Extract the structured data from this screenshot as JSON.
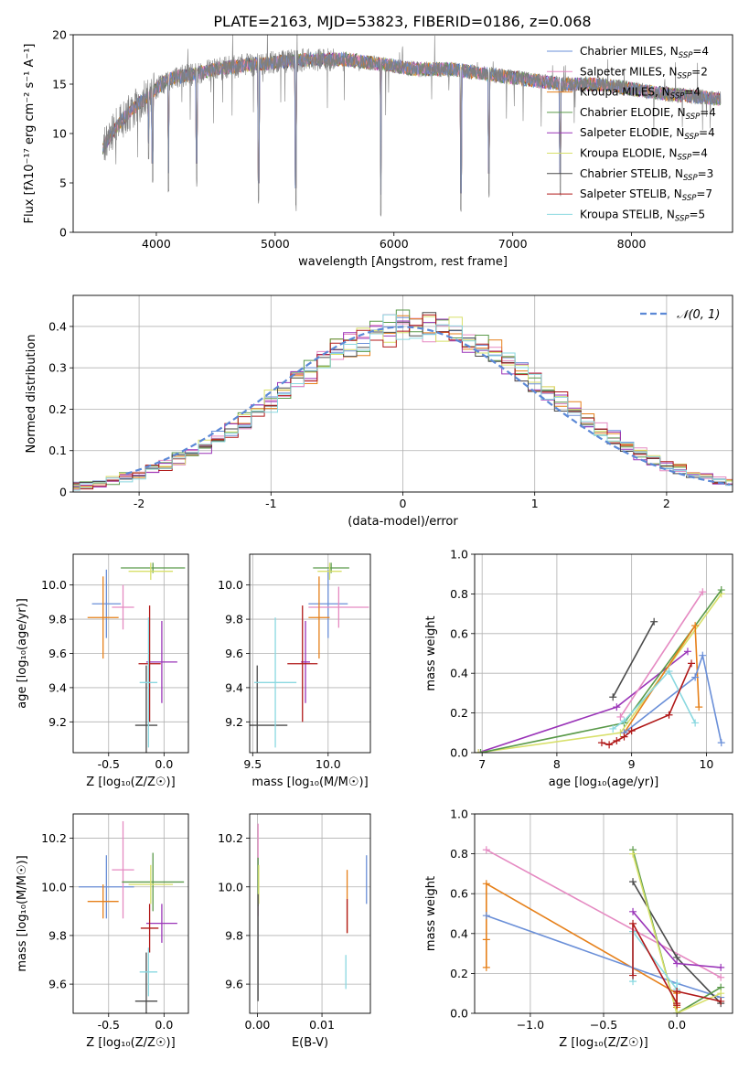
{
  "figure": {
    "title": "PLATE=2163, MJD=53823, FIBERID=0186, z=0.068"
  },
  "colors": {
    "chabrier_miles": "#6a8fd8",
    "salpeter_miles": "#e58ac2",
    "kroupa_miles": "#e6801a",
    "chabrier_elodie": "#5a9a4a",
    "salpeter_elodie": "#9a34b8",
    "kroupa_elodie": "#d8e06a",
    "chabrier_stelib": "#4a4a4a",
    "salpeter_stelib": "#b01818",
    "kroupa_stelib": "#8ad8e0",
    "data_spectrum": "#7f7f7f",
    "gaussian": "#5b88d6",
    "grid": "#b0b0b0"
  },
  "chart_data": [
    {
      "id": "spectrum",
      "type": "line",
      "title": "PLATE=2163, MJD=53823, FIBERID=0186, z=0.068",
      "xlabel": "wavelength [Angstrom, rest frame]",
      "ylabel": "Flux [fλ10⁻¹⁷ erg cm⁻² s⁻¹ A⁻¹]",
      "xlim": [
        3300,
        8850
      ],
      "ylim": [
        0,
        20
      ],
      "xticks": [
        4000,
        5000,
        6000,
        7000,
        8000
      ],
      "yticks": [
        0,
        5,
        10,
        15,
        20
      ],
      "grid": false,
      "legend_position": "top-right",
      "legend": [
        {
          "label": "Chabrier MILES, N",
          "sub": "SSP",
          "suffix": "=4",
          "color_key": "chabrier_miles"
        },
        {
          "label": "Salpeter MILES, N",
          "sub": "SSP",
          "suffix": "=2",
          "color_key": "salpeter_miles"
        },
        {
          "label": "Kroupa MILES, N",
          "sub": "SSP",
          "suffix": "=4",
          "color_key": "kroupa_miles"
        },
        {
          "label": "Chabrier ELODIE, N",
          "sub": "SSP",
          "suffix": "=4",
          "color_key": "chabrier_elodie"
        },
        {
          "label": "Salpeter ELODIE, N",
          "sub": "SSP",
          "suffix": "=4",
          "color_key": "salpeter_elodie"
        },
        {
          "label": "Kroupa ELODIE, N",
          "sub": "SSP",
          "suffix": "=4",
          "color_key": "kroupa_elodie"
        },
        {
          "label": "Chabrier STELIB, N",
          "sub": "SSP",
          "suffix": "=3",
          "color_key": "chabrier_stelib"
        },
        {
          "label": "Salpeter STELIB, N",
          "sub": "SSP",
          "suffix": "=7",
          "color_key": "salpeter_stelib"
        },
        {
          "label": "Kroupa STELIB, N",
          "sub": "SSP",
          "suffix": "=5",
          "color_key": "kroupa_stelib"
        }
      ],
      "continuum": [
        [
          3550,
          8.5
        ],
        [
          3650,
          10.5
        ],
        [
          3800,
          12.5
        ],
        [
          3950,
          14.0
        ],
        [
          4100,
          15.5
        ],
        [
          4300,
          16.0
        ],
        [
          4500,
          16.5
        ],
        [
          4800,
          17.0
        ],
        [
          5000,
          17.2
        ],
        [
          5300,
          17.5
        ],
        [
          5600,
          17.5
        ],
        [
          5900,
          17.0
        ],
        [
          6200,
          16.5
        ],
        [
          6500,
          16.5
        ],
        [
          6800,
          16.0
        ],
        [
          7100,
          15.5
        ],
        [
          7400,
          15.0
        ],
        [
          7700,
          15.0
        ],
        [
          8000,
          14.5
        ],
        [
          8300,
          14.0
        ],
        [
          8750,
          13.5
        ]
      ],
      "absorption_lines": [
        [
          3934,
          7.0
        ],
        [
          3969,
          5.0
        ],
        [
          4102,
          4.0
        ],
        [
          4340,
          5.0
        ],
        [
          4861,
          3.0
        ],
        [
          5175,
          2.5
        ],
        [
          5890,
          1.8
        ],
        [
          6563,
          2.0
        ],
        [
          6800,
          4.0
        ],
        [
          7400,
          4.0
        ]
      ]
    },
    {
      "id": "residuals",
      "type": "area",
      "xlabel": "(data-model)/error",
      "ylabel": "Normed distribution",
      "xlim": [
        -2.5,
        2.5
      ],
      "ylim": [
        0,
        0.475
      ],
      "xticks": [
        -2,
        -1,
        0,
        1,
        2
      ],
      "yticks": [
        0.0,
        0.1,
        0.2,
        0.3,
        0.4
      ],
      "grid": true,
      "legend_position": "top-right",
      "legend": [
        {
          "label": "𝒩(0, 1)",
          "color_key": "gaussian",
          "style": "dashed"
        }
      ],
      "bin_width": 0.1,
      "note_values": "histogram bins follow the standard normal density"
    },
    {
      "id": "age_vs_Z",
      "type": "scatter",
      "xlabel": "Z [log₁₀(Z/Z☉)]",
      "ylabel": "age  [log₁₀(age/yr)]",
      "xlim": [
        -0.82,
        0.22
      ],
      "ylim": [
        9.02,
        10.18
      ],
      "xticks": [
        -0.5,
        0.0
      ],
      "yticks": [
        9.2,
        9.4,
        9.6,
        9.8,
        10.0
      ],
      "grid": true,
      "points": [
        {
          "k": "chabrier_miles",
          "x": -0.52,
          "y": 9.89,
          "xerr": 0.13,
          "yerr": 0.2
        },
        {
          "k": "salpeter_miles",
          "x": -0.37,
          "y": 9.87,
          "xerr": 0.1,
          "yerr": 0.13
        },
        {
          "k": "kroupa_miles",
          "x": -0.55,
          "y": 9.81,
          "xerr": 0.14,
          "yerr": 0.24
        },
        {
          "k": "chabrier_elodie",
          "x": -0.1,
          "y": 10.1,
          "xerr": 0.29,
          "yerr": 0.03
        },
        {
          "k": "salpeter_elodie",
          "x": -0.02,
          "y": 9.55,
          "xerr": 0.14,
          "yerr": 0.24
        },
        {
          "k": "kroupa_elodie",
          "x": -0.12,
          "y": 10.08,
          "xerr": 0.2,
          "yerr": 0.05
        },
        {
          "k": "chabrier_stelib",
          "x": -0.16,
          "y": 9.18,
          "xerr": 0.1,
          "yerr": 0.35
        },
        {
          "k": "salpeter_stelib",
          "x": -0.13,
          "y": 9.54,
          "xerr": 0.1,
          "yerr": 0.34
        },
        {
          "k": "kroupa_stelib",
          "x": -0.14,
          "y": 9.43,
          "xerr": 0.08,
          "yerr": 0.38
        }
      ]
    },
    {
      "id": "age_vs_mass",
      "type": "scatter",
      "xlabel": "mass [log₁₀(M/M☉)]",
      "ylabel": "",
      "xlim": [
        9.48,
        10.28
      ],
      "ylim": [
        9.02,
        10.18
      ],
      "xticks": [
        9.5,
        10.0
      ],
      "yticks": [
        9.2,
        9.4,
        9.6,
        9.8,
        10.0
      ],
      "grid": true,
      "points": [
        {
          "k": "chabrier_miles",
          "x": 10.0,
          "y": 9.89,
          "xerr": 0.13,
          "yerr": 0.2
        },
        {
          "k": "salpeter_miles",
          "x": 10.07,
          "y": 9.87,
          "xerr": 0.2,
          "yerr": 0.12
        },
        {
          "k": "kroupa_miles",
          "x": 9.94,
          "y": 9.81,
          "xerr": 0.07,
          "yerr": 0.24
        },
        {
          "k": "chabrier_elodie",
          "x": 10.02,
          "y": 10.1,
          "xerr": 0.12,
          "yerr": 0.03
        },
        {
          "k": "salpeter_elodie",
          "x": 9.85,
          "y": 9.55,
          "xerr": 0.03,
          "yerr": 0.24
        },
        {
          "k": "kroupa_elodie",
          "x": 10.01,
          "y": 10.08,
          "xerr": 0.08,
          "yerr": 0.05
        },
        {
          "k": "chabrier_stelib",
          "x": 9.53,
          "y": 9.18,
          "xerr": 0.2,
          "yerr": 0.35
        },
        {
          "k": "salpeter_stelib",
          "x": 9.83,
          "y": 9.54,
          "xerr": 0.1,
          "yerr": 0.34
        },
        {
          "k": "kroupa_stelib",
          "x": 9.65,
          "y": 9.43,
          "xerr": 0.14,
          "yerr": 0.38
        }
      ]
    },
    {
      "id": "massweight_vs_age",
      "type": "line",
      "xlabel": "age  [log₁₀(age/yr)]",
      "ylabel": "mass weight",
      "xlim": [
        6.9,
        10.35
      ],
      "ylim": [
        0.0,
        1.0
      ],
      "xticks": [
        7,
        8,
        9,
        10
      ],
      "yticks": [
        0.0,
        0.2,
        0.4,
        0.6,
        0.8,
        1.0
      ],
      "grid": true,
      "series": [
        {
          "k": "salpeter_elodie",
          "x": [
            6.95,
            8.8,
            9.75
          ],
          "y": [
            0.0,
            0.23,
            0.51
          ]
        },
        {
          "k": "kroupa_elodie",
          "x": [
            6.95,
            8.85,
            10.2
          ],
          "y": [
            0.0,
            0.1,
            0.8
          ]
        },
        {
          "k": "chabrier_elodie",
          "x": [
            6.98,
            8.9,
            10.2
          ],
          "y": [
            0.0,
            0.15,
            0.82
          ]
        },
        {
          "k": "chabrier_stelib",
          "x": [
            8.75,
            9.3
          ],
          "y": [
            0.28,
            0.66
          ]
        },
        {
          "k": "salpeter_miles",
          "x": [
            8.85,
            9.95
          ],
          "y": [
            0.18,
            0.81
          ]
        },
        {
          "k": "kroupa_miles",
          "x": [
            8.9,
            9.85,
            9.9
          ],
          "y": [
            0.1,
            0.64,
            0.23
          ]
        },
        {
          "k": "chabrier_miles",
          "x": [
            8.9,
            9.85,
            9.95,
            10.2
          ],
          "y": [
            0.1,
            0.38,
            0.49,
            0.05
          ]
        },
        {
          "k": "kroupa_stelib",
          "x": [
            8.75,
            8.9,
            9.5,
            9.85
          ],
          "y": [
            0.12,
            0.16,
            0.41,
            0.15
          ]
        },
        {
          "k": "salpeter_stelib",
          "x": [
            8.6,
            8.7,
            8.8,
            8.9,
            9.0,
            9.5,
            9.8
          ],
          "y": [
            0.05,
            0.04,
            0.06,
            0.08,
            0.11,
            0.19,
            0.45
          ]
        }
      ]
    },
    {
      "id": "mass_vs_Z",
      "type": "scatter",
      "xlabel": "Z [log₁₀(Z/Z☉)]",
      "ylabel": "mass [log₁₀(M/M☉)]",
      "xlim": [
        -0.82,
        0.22
      ],
      "ylim": [
        9.48,
        10.3
      ],
      "xticks": [
        -0.5,
        0.0
      ],
      "yticks": [
        9.6,
        9.8,
        10.0,
        10.2
      ],
      "grid": true,
      "points": [
        {
          "k": "chabrier_miles",
          "x": -0.52,
          "y": 10.0,
          "xerr": 0.25,
          "yerr": 0.13
        },
        {
          "k": "salpeter_miles",
          "x": -0.37,
          "y": 10.07,
          "xerr": 0.1,
          "yerr": 0.2
        },
        {
          "k": "kroupa_miles",
          "x": -0.55,
          "y": 9.94,
          "xerr": 0.14,
          "yerr": 0.07
        },
        {
          "k": "chabrier_elodie",
          "x": -0.1,
          "y": 10.02,
          "xerr": 0.28,
          "yerr": 0.12
        },
        {
          "k": "salpeter_elodie",
          "x": -0.02,
          "y": 9.85,
          "xerr": 0.14,
          "yerr": 0.08
        },
        {
          "k": "kroupa_elodie",
          "x": -0.12,
          "y": 10.01,
          "xerr": 0.2,
          "yerr": 0.08
        },
        {
          "k": "chabrier_stelib",
          "x": -0.16,
          "y": 9.53,
          "xerr": 0.1,
          "yerr": 0.2
        },
        {
          "k": "salpeter_stelib",
          "x": -0.13,
          "y": 9.83,
          "xerr": 0.08,
          "yerr": 0.1
        },
        {
          "k": "kroupa_stelib",
          "x": -0.14,
          "y": 9.65,
          "xerr": 0.08,
          "yerr": 0.1
        }
      ]
    },
    {
      "id": "mass_vs_ebv",
      "type": "scatter",
      "xlabel": "E(B-V)",
      "ylabel": "",
      "xlim": [
        -0.0012,
        0.0175
      ],
      "ylim": [
        9.48,
        10.3
      ],
      "xticks": [
        0.0,
        0.01
      ],
      "xticklabels": [
        "0.00",
        "0.01"
      ],
      "yticks": [
        9.6,
        9.8,
        10.0,
        10.2
      ],
      "grid": true,
      "points": [
        {
          "k": "chabrier_miles",
          "x": 0.0169,
          "y": 10.03,
          "xerr": 0,
          "yerr": 0.1
        },
        {
          "k": "salpeter_miles",
          "x": 0.0001,
          "y": 10.07,
          "xerr": 0,
          "yerr": 0.19
        },
        {
          "k": "kroupa_miles",
          "x": 0.0139,
          "y": 9.94,
          "xerr": 0,
          "yerr": 0.13
        },
        {
          "k": "chabrier_elodie",
          "x": 0.0001,
          "y": 10.02,
          "xerr": 0,
          "yerr": 0.1
        },
        {
          "k": "kroupa_elodie",
          "x": 0.0002,
          "y": 10.01,
          "xerr": 0,
          "yerr": 0.08
        },
        {
          "k": "chabrier_stelib",
          "x": 0.0001,
          "y": 9.75,
          "xerr": 0,
          "yerr": 0.22
        },
        {
          "k": "salpeter_stelib",
          "x": 0.0139,
          "y": 9.88,
          "xerr": 0,
          "yerr": 0.07
        },
        {
          "k": "kroupa_stelib",
          "x": 0.0137,
          "y": 9.65,
          "xerr": 0,
          "yerr": 0.07
        }
      ]
    },
    {
      "id": "massweight_vs_Z",
      "type": "line",
      "xlabel": "Z [log₁₀(Z/Z☉)]",
      "ylabel": "mass weight",
      "xlim": [
        -1.38,
        0.38
      ],
      "ylim": [
        0.0,
        1.0
      ],
      "xticks": [
        -1.0,
        -0.5,
        0.0
      ],
      "xticklabels": [
        "−1.0",
        "−0.5",
        "0.0"
      ],
      "yticks": [
        0.0,
        0.2,
        0.4,
        0.6,
        0.8,
        1.0
      ],
      "grid": true,
      "series": [
        {
          "k": "salpeter_miles",
          "x": [
            -1.3,
            0.3
          ],
          "y": [
            0.82,
            0.18
          ]
        },
        {
          "k": "kroupa_miles",
          "x": [
            -1.3,
            -1.3,
            -1.3,
            0.0,
            0.0
          ],
          "y": [
            0.23,
            0.37,
            0.65,
            0.1,
            0.03
          ]
        },
        {
          "k": "chabrier_miles",
          "x": [
            -1.3,
            0.0,
            0.3
          ],
          "y": [
            0.49,
            0.15,
            0.08
          ]
        },
        {
          "k": "chabrier_stelib",
          "x": [
            -0.3,
            0.0,
            0.3
          ],
          "y": [
            0.66,
            0.28,
            0.05
          ]
        },
        {
          "k": "salpeter_elodie",
          "x": [
            -0.3,
            0.0,
            0.3
          ],
          "y": [
            0.51,
            0.25,
            0.23
          ]
        },
        {
          "k": "chabrier_elodie",
          "x": [
            -0.3,
            0.0,
            0.3
          ],
          "y": [
            0.82,
            0.0,
            0.13
          ]
        },
        {
          "k": "kroupa_elodie",
          "x": [
            -0.3,
            0.0,
            0.3
          ],
          "y": [
            0.8,
            0.0,
            0.1
          ]
        },
        {
          "k": "kroupa_stelib",
          "x": [
            -0.3,
            -0.3,
            0.0,
            0.0
          ],
          "y": [
            0.16,
            0.41,
            0.12,
            0.15
          ]
        },
        {
          "k": "salpeter_stelib",
          "x": [
            -0.3,
            -0.3,
            0.0,
            0.0,
            0.0,
            0.3
          ],
          "y": [
            0.19,
            0.45,
            0.05,
            0.04,
            0.11,
            0.06
          ]
        }
      ]
    }
  ]
}
